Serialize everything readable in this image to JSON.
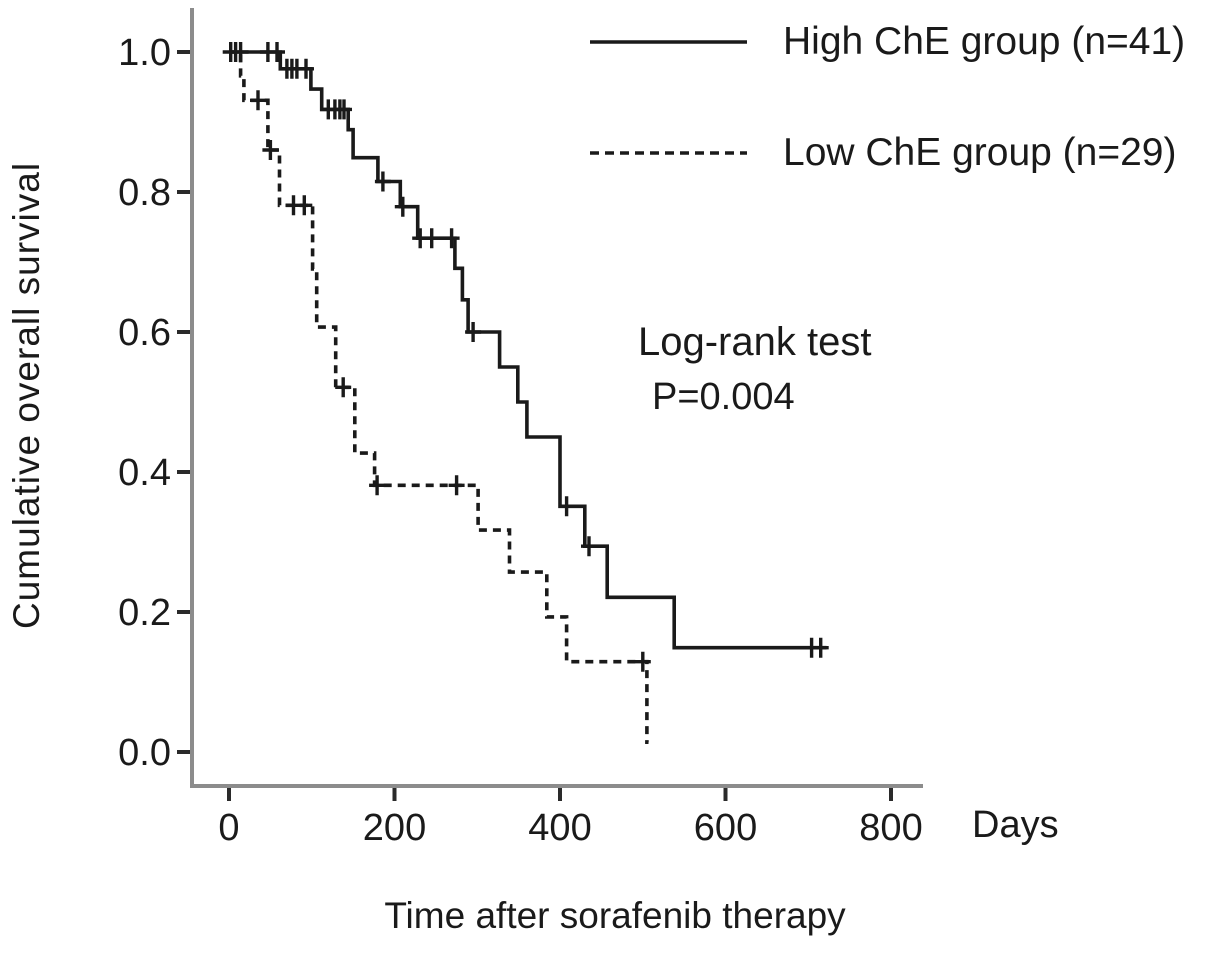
{
  "figure": {
    "y_axis_title": "Cumulative overall survival",
    "x_axis_title": "Time after sorafenib therapy",
    "x_unit_label": "Days"
  },
  "statistics": {
    "test_name": "Log-rank test",
    "p_value": "P=0.004"
  },
  "legend": [
    {
      "label": "High ChE group (n=41)",
      "style": "solid"
    },
    {
      "label": "Low ChE group (n=29)",
      "style": "dashed"
    }
  ],
  "colors": {
    "curve": "#1a1a1a",
    "axis": "#8c8c8c",
    "tick": "#2a2a2a",
    "text": "#1a1a1a",
    "background": "#ffffff"
  },
  "chart_data": {
    "type": "line",
    "subtype": "kaplan-meier-step",
    "title": "",
    "xlabel": "Time after sorafenib therapy (Days)",
    "ylabel": "Cumulative overall survival",
    "xlim": [
      0,
      840
    ],
    "ylim": [
      0,
      1.0
    ],
    "grid": false,
    "legend_position": "top-right",
    "annotation": "Log-rank test P=0.004",
    "xticks": [
      {
        "v": 0,
        "label": "0"
      },
      {
        "v": 200,
        "label": "200"
      },
      {
        "v": 400,
        "label": "400"
      },
      {
        "v": 600,
        "label": "600"
      },
      {
        "v": 800,
        "label": "800"
      }
    ],
    "yticks": [
      {
        "v": 0.0,
        "label": "0.0"
      },
      {
        "v": 0.2,
        "label": "0.2"
      },
      {
        "v": 0.4,
        "label": "0.4"
      },
      {
        "v": 0.6,
        "label": "0.6"
      },
      {
        "v": 0.8,
        "label": "0.8"
      },
      {
        "v": 1.0,
        "label": "1.0"
      }
    ],
    "series": [
      {
        "name": "High ChE group",
        "n": 41,
        "line": "solid",
        "start": [
          0,
          1.0
        ],
        "steps": [
          [
            62,
            0.976
          ],
          [
            99,
            0.947
          ],
          [
            112,
            0.918
          ],
          [
            144,
            0.889
          ],
          [
            150,
            0.849
          ],
          [
            180,
            0.815
          ],
          [
            207,
            0.779
          ],
          [
            228,
            0.734
          ],
          [
            273,
            0.691
          ],
          [
            282,
            0.646
          ],
          [
            289,
            0.6
          ],
          [
            327,
            0.55
          ],
          [
            349,
            0.5
          ],
          [
            360,
            0.45
          ],
          [
            400,
            0.351
          ],
          [
            430,
            0.294
          ],
          [
            457,
            0.221
          ],
          [
            538,
            0.149
          ]
        ],
        "end_day": 722,
        "censors": [
          [
            2,
            1.0
          ],
          [
            8,
            1.0
          ],
          [
            14,
            1.0
          ],
          [
            47,
            1.0
          ],
          [
            58,
            1.0
          ],
          [
            70,
            0.976
          ],
          [
            76,
            0.976
          ],
          [
            82,
            0.976
          ],
          [
            93,
            0.976
          ],
          [
            120,
            0.918
          ],
          [
            128,
            0.918
          ],
          [
            134,
            0.918
          ],
          [
            139,
            0.918
          ],
          [
            186,
            0.815
          ],
          [
            210,
            0.779
          ],
          [
            231,
            0.734
          ],
          [
            245,
            0.734
          ],
          [
            269,
            0.734
          ],
          [
            295,
            0.6
          ],
          [
            408,
            0.351
          ],
          [
            435,
            0.294
          ],
          [
            704,
            0.149
          ],
          [
            715,
            0.149
          ]
        ]
      },
      {
        "name": "Low ChE group",
        "n": 29,
        "line": "dashed",
        "start": [
          0,
          1.0
        ],
        "steps": [
          [
            14,
            0.966
          ],
          [
            18,
            0.931
          ],
          [
            47,
            0.86
          ],
          [
            61,
            0.781
          ],
          [
            101,
            0.69
          ],
          [
            106,
            0.607
          ],
          [
            129,
            0.521
          ],
          [
            152,
            0.427
          ],
          [
            176,
            0.381
          ],
          [
            301,
            0.317
          ],
          [
            339,
            0.257
          ],
          [
            384,
            0.193
          ],
          [
            408,
            0.129
          ],
          [
            505,
            0.014
          ]
        ],
        "end_day": 507,
        "censors": [
          [
            35,
            0.931
          ],
          [
            50,
            0.86
          ],
          [
            78,
            0.781
          ],
          [
            91,
            0.781
          ],
          [
            138,
            0.521
          ],
          [
            179,
            0.381
          ],
          [
            275,
            0.381
          ],
          [
            500,
            0.129
          ]
        ]
      }
    ]
  }
}
